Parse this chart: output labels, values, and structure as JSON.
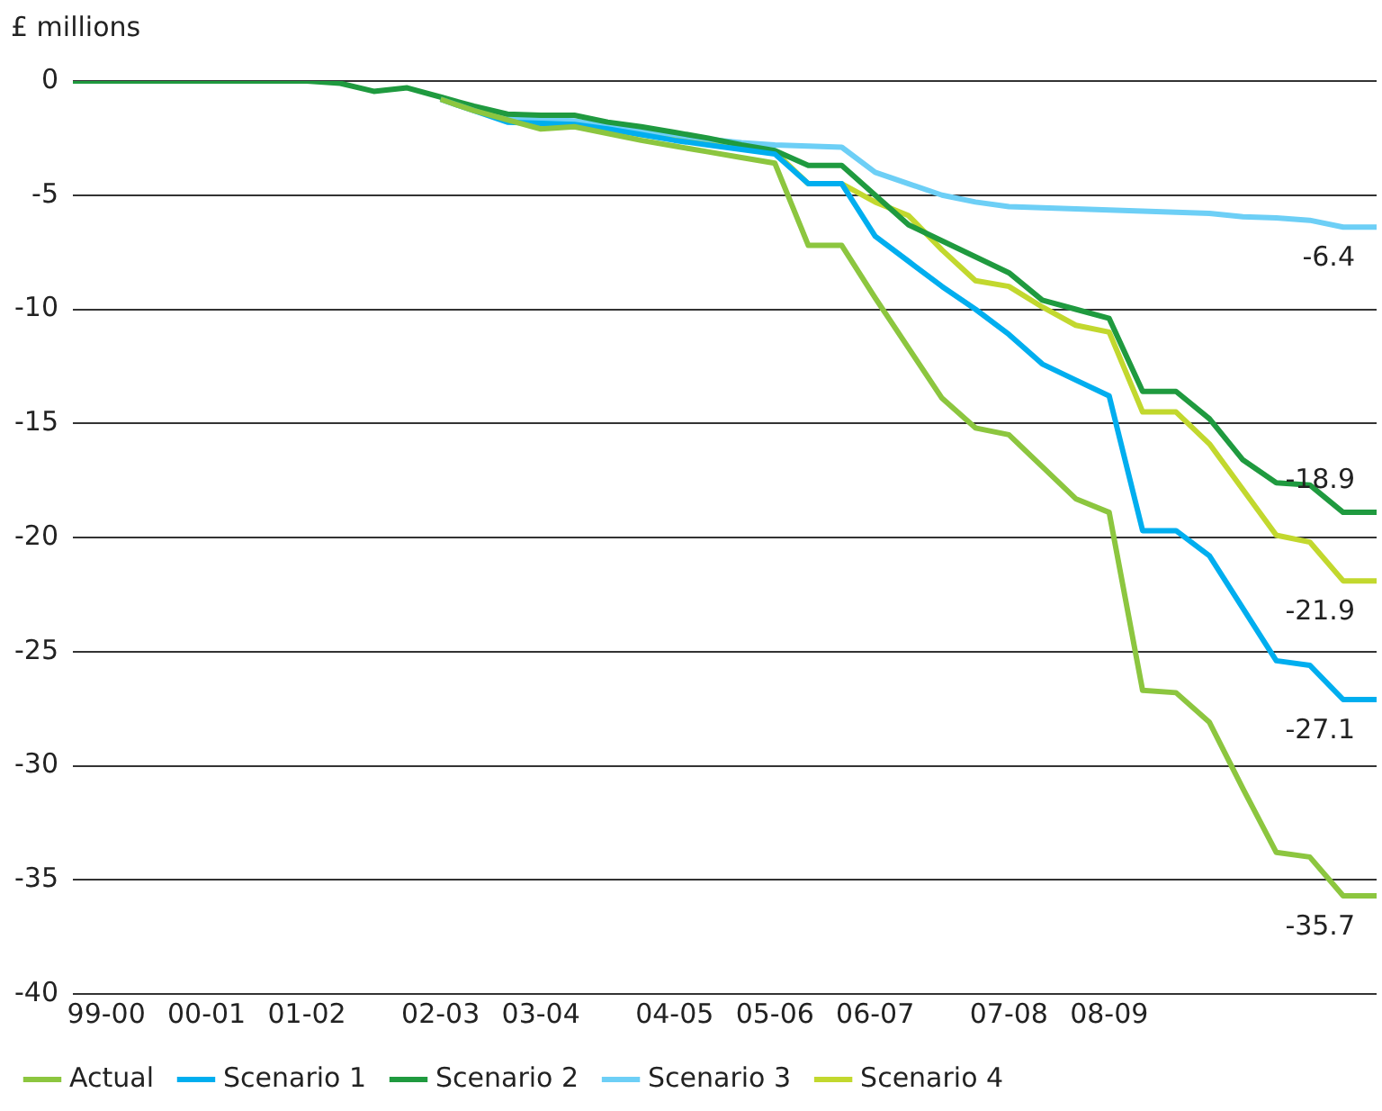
{
  "chart_data": {
    "type": "line",
    "ylabel": "£ millions",
    "categories": [
      null,
      "99-00",
      null,
      null,
      "00-01",
      null,
      null,
      "01-02",
      null,
      null,
      null,
      "02-03",
      null,
      null,
      "03-04",
      null,
      null,
      null,
      "04-05",
      null,
      null,
      "05-06",
      null,
      null,
      "06-07",
      null,
      null,
      null,
      "07-08",
      null,
      null,
      "08-09",
      null,
      null,
      null,
      null,
      null,
      null,
      null,
      null
    ],
    "ylim": [
      -40,
      0
    ],
    "yticks": [
      -40,
      -35,
      -30,
      -25,
      -20,
      -15,
      -10,
      -5,
      0
    ],
    "grid": "y",
    "legend": "bottom",
    "marker": "none",
    "line_style": "solid",
    "series": [
      {
        "name": "Actual",
        "color": "#8cc63f",
        "values": [
          null,
          null,
          null,
          null,
          null,
          null,
          null,
          null,
          null,
          null,
          null,
          -0.8,
          -1.3,
          -1.7,
          -2.1,
          -2.0,
          -2.3,
          -2.6,
          -2.85,
          -3.1,
          -3.35,
          -3.6,
          -7.2,
          -7.2,
          -9.5,
          -11.7,
          -13.9,
          -15.2,
          -15.5,
          -16.9,
          -18.3,
          -18.9,
          -26.7,
          -26.8,
          -28.1,
          -31.0,
          -33.8,
          -34.0,
          -35.7,
          -35.7
        ]
      },
      {
        "name": "Scenario 1",
        "color": "#00aeef",
        "values": [
          null,
          null,
          null,
          null,
          null,
          null,
          null,
          null,
          null,
          null,
          null,
          -0.8,
          -1.3,
          -1.8,
          -1.85,
          -1.9,
          -2.1,
          -2.35,
          -2.6,
          -2.8,
          -3.0,
          -3.2,
          -4.5,
          -4.5,
          -6.8,
          -7.9,
          -9.0,
          -10.0,
          -11.1,
          -12.4,
          -13.1,
          -13.8,
          -19.7,
          -19.7,
          -20.8,
          -23.1,
          -25.4,
          -25.6,
          -27.1,
          -27.1
        ]
      },
      {
        "name": "Scenario 2",
        "color": "#1f9a3f",
        "values": [
          0,
          0,
          0,
          0,
          0,
          0,
          0,
          0,
          -0.1,
          -0.45,
          -0.3,
          -0.7,
          -1.1,
          -1.45,
          -1.5,
          -1.5,
          -1.8,
          -2.0,
          -2.25,
          -2.5,
          -2.8,
          -3.05,
          -3.7,
          -3.7,
          -5.0,
          -6.3,
          -7.0,
          -7.7,
          -8.4,
          -9.6,
          -10.0,
          -10.4,
          -13.6,
          -13.6,
          -14.8,
          -16.6,
          -17.6,
          -17.7,
          -18.9,
          -18.9
        ]
      },
      {
        "name": "Scenario 3",
        "color": "#6dcff6",
        "values": [
          null,
          null,
          null,
          null,
          null,
          null,
          null,
          null,
          null,
          null,
          null,
          -0.7,
          -1.2,
          -1.6,
          -1.7,
          -1.75,
          -1.95,
          -2.15,
          -2.35,
          -2.55,
          -2.7,
          -2.8,
          -2.85,
          -2.9,
          -4.0,
          -4.5,
          -5.0,
          -5.3,
          -5.5,
          -5.55,
          -5.6,
          -5.65,
          -5.7,
          -5.75,
          -5.8,
          -5.95,
          -6.0,
          -6.1,
          -6.4,
          -6.4
        ]
      },
      {
        "name": "Scenario 4",
        "color": "#c2d82e",
        "values": [
          null,
          null,
          null,
          null,
          null,
          null,
          null,
          null,
          null,
          null,
          null,
          -0.75,
          -1.2,
          -1.6,
          -1.9,
          -1.8,
          -2.1,
          -2.35,
          -2.55,
          -2.75,
          -2.95,
          -3.1,
          -4.5,
          -4.5,
          -5.3,
          -5.9,
          -7.4,
          -8.75,
          -9.0,
          -9.9,
          -10.7,
          -11.0,
          -14.5,
          -14.5,
          -15.9,
          -17.9,
          -19.9,
          -20.2,
          -21.9,
          -21.9
        ]
      }
    ],
    "annotations": [
      "-6.4",
      "-18.9",
      "-21.9",
      "-27.1",
      "-35.7"
    ]
  }
}
